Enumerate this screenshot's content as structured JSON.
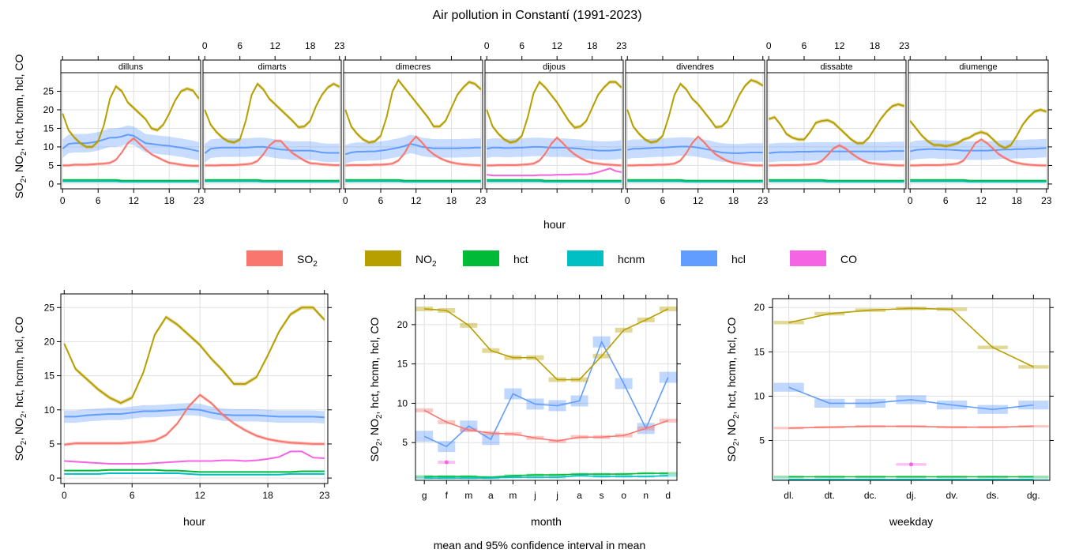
{
  "title": "Air pollution in Constantí (1991-2023)",
  "footer": "mean and 95% confidence interval in mean",
  "colors": {
    "SO2": "#F8766D",
    "NO2": "#B79F00",
    "hct": "#00BA38",
    "hcnm": "#00BFC4",
    "hcl": "#619CFF",
    "CO": "#F564E3"
  },
  "legend": [
    {
      "key": "SO2",
      "label": "SO",
      "sub": "2"
    },
    {
      "key": "NO2",
      "label": "NO",
      "sub": "2"
    },
    {
      "key": "hct",
      "label": "hct",
      "sub": ""
    },
    {
      "key": "hcnm",
      "label": "hcnm",
      "sub": ""
    },
    {
      "key": "hcl",
      "label": "hcl",
      "sub": ""
    },
    {
      "key": "CO",
      "label": "CO",
      "sub": ""
    }
  ],
  "ylabel": "SO2, NO2, hct, hcnm, hcl, CO",
  "chart_data": [
    {
      "type": "line",
      "name": "hour-weekday",
      "xlabel": "hour",
      "ylim": [
        -1.3,
        30
      ],
      "yticks": [
        0,
        5,
        10,
        15,
        20,
        25
      ],
      "xticks": [
        0,
        6,
        12,
        18,
        23
      ],
      "ci": {
        "SO2": 0.4,
        "NO2": 0.5,
        "hct": 0.1,
        "hcnm": 0.1,
        "hcl": 2.5,
        "CO": 0.2
      },
      "panels": [
        {
          "strip": "dilluns",
          "NO2": [
            19,
            14.5,
            12.5,
            11,
            10,
            10,
            11.5,
            16,
            23,
            26.3,
            25,
            22,
            20.5,
            19,
            17.5,
            15,
            14.5,
            16,
            19,
            22.5,
            25,
            25.7,
            25.2,
            23
          ],
          "SO2": [
            5,
            5,
            5.2,
            5.2,
            5.2,
            5.3,
            5.4,
            5.5,
            5.7,
            6.5,
            8.5,
            11,
            12.3,
            10.8,
            9.3,
            8,
            7.2,
            6.4,
            5.7,
            5.5,
            5.2,
            5,
            4.9,
            4.9
          ],
          "hcl": [
            9.5,
            10.8,
            11,
            11,
            11,
            11.2,
            11.5,
            12,
            12.5,
            12.5,
            12.8,
            13.3,
            13,
            12,
            11,
            10.8,
            10.6,
            10.4,
            10.3,
            10,
            9.8,
            9.5,
            9.2,
            8.8
          ]
        },
        {
          "strip": "dimarts",
          "NO2": [
            20,
            16,
            14,
            12.5,
            11.5,
            11.2,
            12,
            17,
            24,
            27,
            25.5,
            23,
            21.5,
            20,
            18.5,
            17,
            15.3,
            15.5,
            17,
            21,
            24,
            26,
            27,
            26.2
          ],
          "SO2": [
            5,
            5,
            5,
            5.1,
            5.1,
            5.1,
            5.2,
            5.3,
            5.5,
            6.2,
            8,
            10.3,
            11.6,
            11.6,
            9.8,
            8.3,
            7.3,
            6.3,
            5.6,
            5.5,
            5.3,
            5.2,
            5.1,
            5.1
          ],
          "hcl": [
            8.3,
            9.5,
            9.7,
            9.8,
            9.8,
            9.8,
            9.8,
            9.8,
            9.9,
            10,
            10,
            9.8,
            9.5,
            9.3,
            9.2,
            9,
            9,
            9,
            9,
            8.8,
            8.5,
            8.4,
            8.4,
            8.4
          ]
        },
        {
          "strip": "dimecres",
          "NO2": [
            20,
            15.5,
            13.5,
            12,
            11.2,
            11.5,
            13,
            18,
            25,
            28,
            26,
            24,
            22,
            20,
            18,
            15.5,
            15.5,
            17,
            20.5,
            24,
            26,
            27.5,
            27,
            25.5
          ],
          "SO2": [
            5,
            5.1,
            5.1,
            5.1,
            5.1,
            5.2,
            5.2,
            5.3,
            5.5,
            6.3,
            8.2,
            11,
            12.8,
            11.2,
            9.3,
            8,
            7,
            6.3,
            5.8,
            5.5,
            5.3,
            5.2,
            5.1,
            5
          ],
          "hcl": [
            8,
            8.5,
            8.7,
            8.7,
            8.8,
            8.8,
            9,
            9.2,
            9.5,
            9.8,
            10.2,
            10.8,
            10.5,
            10,
            9.8,
            9.6,
            9.6,
            9.6,
            9.6,
            9.6,
            9.7,
            9.7,
            9.8,
            9.8
          ]
        },
        {
          "strip": "dijous",
          "NO2": [
            20,
            15.5,
            13.5,
            12,
            11.2,
            11.5,
            13,
            18,
            24.5,
            27.5,
            26,
            24,
            22,
            19.5,
            17,
            15.2,
            15.5,
            17,
            20.5,
            24,
            26,
            27.5,
            27.5,
            26
          ],
          "SO2": [
            5,
            5,
            5.1,
            5.1,
            5.1,
            5.1,
            5.2,
            5.3,
            5.5,
            6.3,
            8.2,
            10.8,
            12.5,
            11,
            9.3,
            8,
            7,
            6.2,
            5.7,
            5.5,
            5.3,
            5.2,
            5.1,
            5
          ],
          "hcl": [
            9.5,
            9.8,
            9.8,
            9.7,
            9.7,
            9.8,
            9.8,
            9.9,
            10,
            10,
            9.9,
            9.8,
            9.8,
            9.8,
            9.7,
            9.6,
            9.5,
            9.3,
            9.2,
            9,
            9,
            9,
            9.1,
            9.3
          ],
          "CO": [
            2.5,
            2.3,
            2.3,
            2.3,
            2.3,
            2.3,
            2.3,
            2.3,
            2.3,
            2.4,
            2.4,
            2.4,
            2.5,
            2.5,
            2.5,
            2.6,
            2.6,
            2.6,
            2.8,
            3.2,
            3.7,
            4.2,
            3.5,
            3.2
          ]
        },
        {
          "strip": "divendres",
          "NO2": [
            20,
            15.5,
            13.5,
            12,
            11.2,
            11.5,
            13,
            18,
            24,
            27,
            25.5,
            23,
            21.5,
            19.5,
            17.5,
            15.3,
            15.5,
            17,
            20.5,
            24,
            26.5,
            28,
            27.5,
            26.5
          ],
          "SO2": [
            5,
            5,
            5.1,
            5.1,
            5.1,
            5.2,
            5.2,
            5.3,
            5.5,
            6.3,
            8.3,
            11,
            12.8,
            11.3,
            9.5,
            8,
            7,
            6.2,
            5.7,
            5.5,
            5.3,
            5.1,
            5,
            5
          ],
          "hcl": [
            9.2,
            9.5,
            9.5,
            9.6,
            9.7,
            9.8,
            9.8,
            9.9,
            10,
            10.1,
            10.1,
            10,
            9.8,
            9.5,
            9.2,
            8.8,
            8.5,
            8.4,
            8.3,
            8.3,
            8.4,
            8.5,
            8.5,
            8.5
          ]
        },
        {
          "strip": "dissabte",
          "NO2": [
            17.5,
            18,
            16,
            13.5,
            12.5,
            12,
            12,
            14,
            16.5,
            17,
            17.2,
            16.5,
            15,
            13.5,
            12,
            11,
            11,
            12.5,
            15,
            17.5,
            19.5,
            21,
            21.5,
            21
          ],
          "SO2": [
            5,
            5,
            5.1,
            5.1,
            5.1,
            5.1,
            5.2,
            5.3,
            5.5,
            6.2,
            7.8,
            9.6,
            10.4,
            9.6,
            8.3,
            7.2,
            6.3,
            5.7,
            5.5,
            5.3,
            5.2,
            5.1,
            5,
            5
          ],
          "hcl": [
            8.3,
            8.5,
            8.6,
            8.6,
            8.6,
            8.7,
            8.7,
            8.7,
            8.8,
            8.8,
            8.8,
            8.8,
            8.8,
            8.8,
            8.8,
            8.8,
            8.8,
            8.8,
            8.8,
            8.8,
            8.8,
            8.9,
            8.9,
            8.9
          ]
        },
        {
          "strip": "diumenge",
          "NO2": [
            17,
            15,
            13,
            11.5,
            10.5,
            10.5,
            10.2,
            10.5,
            11,
            12,
            12.5,
            13.5,
            14,
            13.5,
            12,
            10.5,
            9.7,
            10.5,
            13,
            16,
            18,
            19.5,
            20,
            19.5
          ],
          "SO2": [
            5,
            5,
            5.1,
            5.1,
            5.1,
            5.1,
            5.2,
            5.3,
            5.5,
            6.3,
            8.5,
            11,
            12,
            11,
            9.5,
            8,
            7,
            6.2,
            5.7,
            5.4,
            5.2,
            5.1,
            5,
            5
          ],
          "hcl": [
            8.8,
            9.2,
            9.3,
            9.4,
            9.4,
            9.3,
            9.3,
            9.2,
            9.1,
            9,
            9,
            9,
            9,
            9,
            9.1,
            9.2,
            9.3,
            9.3,
            9.4,
            9.4,
            9.5,
            9.5,
            9.6,
            9.7
          ]
        }
      ]
    },
    {
      "type": "line",
      "name": "hour",
      "xlabel": "hour",
      "ylim": [
        -0.8,
        27
      ],
      "yticks": [
        0,
        5,
        10,
        15,
        20,
        25
      ],
      "xticks": [
        0,
        6,
        12,
        18,
        23
      ],
      "ci": {
        "SO2": 0.25,
        "NO2": 0.3,
        "hct": 0.1,
        "hcnm": 0.1,
        "hcl": 0.9,
        "CO": 0.1
      },
      "x": [
        0,
        1,
        2,
        3,
        4,
        5,
        6,
        7,
        8,
        9,
        10,
        11,
        12,
        13,
        14,
        15,
        16,
        17,
        18,
        19,
        20,
        21,
        22,
        23
      ],
      "NO2": [
        19.7,
        16,
        14.5,
        13,
        11.8,
        11,
        11.8,
        15.5,
        21,
        23.6,
        22.5,
        21,
        19.5,
        17.5,
        15.8,
        13.8,
        13.8,
        14.8,
        18,
        21.5,
        24,
        25,
        25,
        23.2
      ],
      "SO2": [
        4.9,
        5.1,
        5.1,
        5.1,
        5.1,
        5.1,
        5.2,
        5.3,
        5.5,
        6.3,
        8,
        10.5,
        12.2,
        11,
        9.3,
        8,
        7,
        6.2,
        5.7,
        5.4,
        5.2,
        5.1,
        5,
        5
      ],
      "hcl": [
        9,
        9,
        9.2,
        9.3,
        9.4,
        9.4,
        9.6,
        9.8,
        9.8,
        9.9,
        10,
        10.1,
        10,
        9.6,
        9.3,
        9.2,
        9.2,
        9.2,
        9.1,
        9,
        9,
        9,
        9,
        8.9
      ],
      "CO": [
        2.5,
        2.4,
        2.3,
        2.2,
        2.1,
        2.1,
        2.1,
        2.1,
        2.2,
        2.3,
        2.4,
        2.5,
        2.5,
        2.5,
        2.6,
        2.6,
        2.5,
        2.6,
        2.8,
        3.1,
        3.9,
        3.9,
        3,
        2.9
      ],
      "hct": [
        1.1,
        1.1,
        1.1,
        1.1,
        1.2,
        1.2,
        1.2,
        1.2,
        1.2,
        1.1,
        1.1,
        1,
        0.9,
        0.9,
        0.9,
        0.9,
        0.9,
        0.9,
        0.9,
        0.9,
        0.9,
        1,
        1,
        1
      ],
      "hcnm": [
        0.6,
        0.6,
        0.6,
        0.6,
        0.7,
        0.7,
        0.7,
        0.7,
        0.7,
        0.7,
        0.7,
        0.6,
        0.5,
        0.5,
        0.5,
        0.5,
        0.5,
        0.5,
        0.5,
        0.5,
        0.6,
        0.6,
        0.6,
        0.6
      ]
    },
    {
      "type": "line",
      "name": "month",
      "xlabel": "month",
      "ylim": [
        0.2,
        23.3
      ],
      "yticks": [
        5,
        10,
        15,
        20
      ],
      "categories": [
        "g",
        "f",
        "m",
        "a",
        "m",
        "j",
        "j",
        "a",
        "s",
        "o",
        "n",
        "d"
      ],
      "ci": {
        "SO2": 0.25,
        "NO2": 0.3,
        "hct": 0.05,
        "hcnm": 0.05,
        "hcl": 0.7,
        "CO": 0.2
      },
      "NO2": [
        22,
        21.8,
        19.9,
        16.7,
        15.8,
        15.8,
        13,
        13,
        16,
        19.3,
        20.6,
        22
      ],
      "SO2": [
        9.1,
        7.6,
        6.6,
        6.2,
        6.1,
        5.6,
        5.2,
        5.7,
        5.7,
        5.9,
        6.8,
        7.8
      ],
      "hcl": [
        5.8,
        4.5,
        7.1,
        5.4,
        11.2,
        9.9,
        9.7,
        10.3,
        17.8,
        12.5,
        6.8,
        13.3
      ],
      "CO": [
        null,
        2.5,
        null,
        null,
        null,
        null,
        null,
        null,
        null,
        null,
        null,
        null
      ],
      "hct": [
        0.7,
        0.7,
        0.7,
        0.6,
        0.8,
        0.9,
        0.9,
        1,
        1,
        1,
        1.1,
        1.1
      ],
      "hcnm": [
        0.5,
        0.5,
        0.5,
        0.5,
        0.6,
        0.6,
        0.6,
        0.8,
        0.7,
        0.7,
        0.7,
        0.8
      ]
    },
    {
      "type": "line",
      "name": "weekday",
      "xlabel": "weekday",
      "ylim": [
        0.5,
        21
      ],
      "yticks": [
        5,
        10,
        15,
        20
      ],
      "categories": [
        "dl.",
        "dt.",
        "dc.",
        "dj.",
        "dv.",
        "ds.",
        "dg."
      ],
      "ci": {
        "SO2": 0.1,
        "NO2": 0.2,
        "hct": 0.05,
        "hcnm": 0.05,
        "hcl": 0.5,
        "CO": 0.15
      },
      "NO2": [
        18.3,
        19.3,
        19.7,
        19.9,
        19.8,
        15.5,
        13.3
      ],
      "SO2": [
        6.4,
        6.5,
        6.6,
        6.6,
        6.5,
        6.5,
        6.6
      ],
      "hcl": [
        11,
        9.2,
        9.2,
        9.6,
        9,
        8.5,
        9
      ],
      "CO": [
        null,
        null,
        null,
        2.3,
        null,
        null,
        null
      ],
      "hct": [
        0.9,
        0.9,
        0.9,
        0.9,
        0.9,
        0.9,
        0.9
      ],
      "hcnm": [
        0.6,
        0.6,
        0.6,
        0.6,
        0.6,
        0.6,
        0.6
      ]
    }
  ]
}
